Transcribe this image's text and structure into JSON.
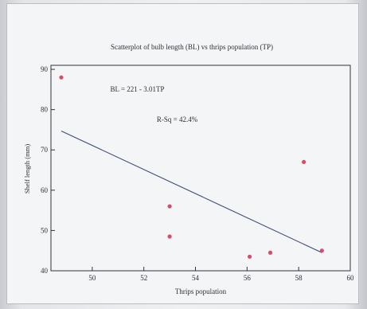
{
  "colors": {
    "background": "#f4f5f6",
    "axis": "#30333c",
    "points": "#d94b6a",
    "fit_line": "#3d4c7c",
    "text": "#2d2f3a"
  },
  "chart_data": {
    "type": "scatter",
    "title": "Scatterplot of bulb length (BL) vs thrips population (TP)",
    "xlabel": "Thrips population",
    "ylabel": "Shelf length (mm)",
    "xlim": [
      48.4,
      60
    ],
    "ylim": [
      40,
      91
    ],
    "xticks": [
      50,
      52,
      54,
      56,
      58,
      60
    ],
    "yticks": [
      40,
      50,
      60,
      70,
      80,
      90
    ],
    "grid": false,
    "legend": "none",
    "points": [
      {
        "x": 48.8,
        "y": 88
      },
      {
        "x": 53.0,
        "y": 56
      },
      {
        "x": 53.0,
        "y": 48.5
      },
      {
        "x": 56.1,
        "y": 43.5
      },
      {
        "x": 56.9,
        "y": 44.5
      },
      {
        "x": 58.2,
        "y": 67
      },
      {
        "x": 58.9,
        "y": 45
      }
    ],
    "fit_line": {
      "x": [
        48.8,
        58.9
      ],
      "y": [
        74.7,
        44.5
      ]
    },
    "annotations": [
      {
        "text": "BL = 221 - 3.01TP",
        "x": 50.7,
        "y": 84.5
      },
      {
        "text": "R-Sq = 42.4%",
        "x": 52.5,
        "y": 77
      }
    ]
  }
}
